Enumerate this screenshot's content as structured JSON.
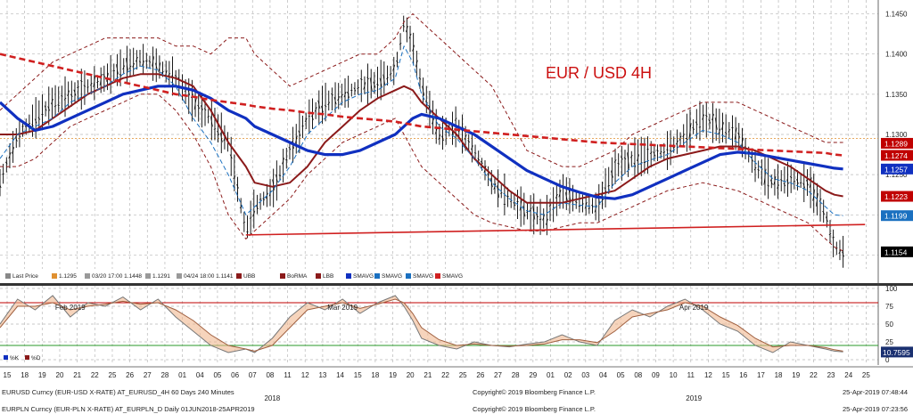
{
  "chart_data": [
    {
      "type": "line",
      "title": "EUR / USD 4H",
      "pair_label": "EUR / USD 4H",
      "ylim": [
        1.1135,
        1.1465
      ],
      "y_ticks": [
        1.115,
        1.12,
        1.125,
        1.13,
        1.135,
        1.14,
        1.145
      ],
      "y_tick_labels": [
        "",
        "",
        "1.1250",
        "1.1300",
        "1.1350",
        "1.1400",
        "1.1450"
      ],
      "grid": true,
      "last_value_tags": [
        {
          "value": 1.1289,
          "label": "1.1289",
          "color": "#c00000"
        },
        {
          "value": 1.1274,
          "label": "1.1274",
          "color": "#c00000"
        },
        {
          "value": 1.1257,
          "label": "1.1257",
          "color": "#1030c0"
        },
        {
          "value": 1.1223,
          "label": "1.1223",
          "color": "#c00000"
        },
        {
          "value": 1.1199,
          "label": "1.1199",
          "color": "#1a70c0"
        },
        {
          "value": 1.1154,
          "label": "1.1154",
          "color": "#000000"
        }
      ],
      "reference_lines": [
        {
          "name": "last-price-ref",
          "value": 1.1295,
          "color": "#e09030"
        }
      ],
      "trendline": {
        "x": [
          0.28,
          0.985
        ],
        "y": [
          1.1175,
          1.1188
        ],
        "color": "#d02020"
      },
      "price_series": {
        "x": [
          0.0,
          0.02,
          0.04,
          0.06,
          0.08,
          0.1,
          0.12,
          0.14,
          0.16,
          0.18,
          0.2,
          0.22,
          0.24,
          0.26,
          0.28,
          0.29,
          0.31,
          0.33,
          0.35,
          0.37,
          0.39,
          0.41,
          0.43,
          0.45,
          0.46,
          0.47,
          0.48,
          0.5,
          0.52,
          0.54,
          0.56,
          0.58,
          0.6,
          0.62,
          0.64,
          0.66,
          0.68,
          0.7,
          0.72,
          0.74,
          0.76,
          0.78,
          0.8,
          0.82,
          0.84,
          0.86,
          0.88,
          0.9,
          0.92,
          0.94,
          0.95,
          0.96
        ],
        "y": [
          1.124,
          1.13,
          1.132,
          1.134,
          1.135,
          1.136,
          1.137,
          1.1385,
          1.1395,
          1.1385,
          1.137,
          1.134,
          1.132,
          1.129,
          1.118,
          1.121,
          1.123,
          1.128,
          1.132,
          1.134,
          1.135,
          1.136,
          1.1365,
          1.138,
          1.144,
          1.141,
          1.136,
          1.13,
          1.131,
          1.128,
          1.124,
          1.122,
          1.1205,
          1.1195,
          1.123,
          1.1215,
          1.121,
          1.126,
          1.127,
          1.1275,
          1.128,
          1.13,
          1.132,
          1.131,
          1.13,
          1.126,
          1.124,
          1.1245,
          1.124,
          1.12,
          1.116,
          1.1154
        ]
      },
      "series": [
        {
          "name": "UBB",
          "color": "#8b1a1a",
          "dash": "4,3",
          "values": [
            1.133,
            1.135,
            1.137,
            1.139,
            1.14,
            1.141,
            1.142,
            1.142,
            1.142,
            1.142,
            1.141,
            1.141,
            1.14,
            1.142,
            1.142,
            1.14,
            1.138,
            1.136,
            1.137,
            1.138,
            1.139,
            1.14,
            1.14,
            1.142,
            1.144,
            1.145,
            1.144,
            1.142,
            1.14,
            1.138,
            1.136,
            1.132,
            1.128,
            1.127,
            1.126,
            1.126,
            1.127,
            1.128,
            1.13,
            1.131,
            1.132,
            1.133,
            1.134,
            1.134,
            1.134,
            1.133,
            1.132,
            1.131,
            1.13,
            1.129,
            1.129,
            1.129
          ]
        },
        {
          "name": "BoRMA",
          "color": "#8b1a1a",
          "dash": "",
          "values": [
            1.13,
            1.13,
            1.1305,
            1.132,
            1.1335,
            1.135,
            1.136,
            1.137,
            1.1375,
            1.1375,
            1.137,
            1.136,
            1.133,
            1.129,
            1.126,
            1.124,
            1.1235,
            1.124,
            1.126,
            1.129,
            1.131,
            1.133,
            1.1345,
            1.1355,
            1.136,
            1.1355,
            1.134,
            1.132,
            1.13,
            1.127,
            1.125,
            1.123,
            1.1215,
            1.1215,
            1.1215,
            1.122,
            1.1225,
            1.123,
            1.1245,
            1.126,
            1.127,
            1.1275,
            1.128,
            1.1285,
            1.1285,
            1.128,
            1.127,
            1.126,
            1.1245,
            1.123,
            1.1225,
            1.1223
          ]
        },
        {
          "name": "LBB",
          "color": "#8b1a1a",
          "dash": "4,3",
          "values": [
            1.126,
            1.126,
            1.127,
            1.129,
            1.131,
            1.132,
            1.133,
            1.134,
            1.135,
            1.135,
            1.133,
            1.13,
            1.126,
            1.12,
            1.117,
            1.118,
            1.12,
            1.122,
            1.125,
            1.127,
            1.129,
            1.13,
            1.131,
            1.132,
            1.13,
            1.128,
            1.126,
            1.124,
            1.122,
            1.12,
            1.119,
            1.1185,
            1.118,
            1.118,
            1.1185,
            1.119,
            1.119,
            1.12,
            1.121,
            1.122,
            1.123,
            1.1235,
            1.124,
            1.1235,
            1.123,
            1.122,
            1.121,
            1.12,
            1.119,
            1.117,
            1.116,
            1.1155
          ]
        },
        {
          "name": "SMAVG",
          "color": "#1030c0",
          "dash": "",
          "values": [
            1.134,
            1.132,
            1.1305,
            1.131,
            1.132,
            1.133,
            1.134,
            1.135,
            1.1355,
            1.136,
            1.136,
            1.1355,
            1.1345,
            1.133,
            1.132,
            1.131,
            1.13,
            1.129,
            1.128,
            1.1275,
            1.1275,
            1.128,
            1.129,
            1.13,
            1.131,
            1.132,
            1.1325,
            1.132,
            1.131,
            1.13,
            1.1285,
            1.127,
            1.1255,
            1.1245,
            1.1235,
            1.1228,
            1.1222,
            1.122,
            1.1225,
            1.1235,
            1.1245,
            1.1255,
            1.1265,
            1.1275,
            1.1278,
            1.1276,
            1.1272,
            1.1268,
            1.1264,
            1.126,
            1.1258,
            1.1257
          ]
        },
        {
          "name": "SMAVG",
          "color": "#1a70c0",
          "dash": "5,3",
          "values": [
            1.127,
            1.13,
            1.131,
            1.132,
            1.134,
            1.135,
            1.136,
            1.1375,
            1.1385,
            1.138,
            1.136,
            1.132,
            1.129,
            1.125,
            1.12,
            1.121,
            1.123,
            1.126,
            1.13,
            1.132,
            1.134,
            1.135,
            1.1355,
            1.137,
            1.141,
            1.139,
            1.135,
            1.131,
            1.1295,
            1.127,
            1.124,
            1.122,
            1.1205,
            1.12,
            1.1215,
            1.1212,
            1.121,
            1.124,
            1.126,
            1.1268,
            1.1275,
            1.129,
            1.1305,
            1.13,
            1.129,
            1.1265,
            1.1245,
            1.124,
            1.123,
            1.121,
            1.12,
            1.1199
          ]
        },
        {
          "name": "SMAVG",
          "color": "#d02020",
          "dash": "7,4",
          "values": [
            1.14,
            1.1395,
            1.139,
            1.1385,
            1.138,
            1.1375,
            1.137,
            1.1365,
            1.136,
            1.1355,
            1.135,
            1.1347,
            1.1343,
            1.134,
            1.1337,
            1.1335,
            1.1332,
            1.133,
            1.1327,
            1.1325,
            1.1322,
            1.132,
            1.1318,
            1.1316,
            1.1314,
            1.1312,
            1.131,
            1.1308,
            1.1306,
            1.1304,
            1.1302,
            1.13,
            1.1298,
            1.1296,
            1.1294,
            1.1292,
            1.129,
            1.1289,
            1.1288,
            1.1287,
            1.1286,
            1.1285,
            1.1284,
            1.1283,
            1.1282,
            1.1281,
            1.128,
            1.1279,
            1.1278,
            1.1277,
            1.1275,
            1.1274
          ]
        }
      ]
    },
    {
      "type": "line",
      "title": "",
      "ylim": [
        0,
        100
      ],
      "y_ticks": [
        0,
        25,
        50,
        75,
        100
      ],
      "y_tick_labels": [
        "0",
        "25",
        "50",
        "75",
        "100"
      ],
      "reference_lines": [
        {
          "name": "overbought",
          "value": 80,
          "color": "#c00000"
        },
        {
          "name": "oversold",
          "value": 20,
          "color": "#2a9a2a"
        }
      ],
      "last_value_tag": {
        "value": 10.7595,
        "label": "10.7595"
      },
      "series": [
        {
          "name": "%K",
          "color": "#1030c0",
          "values": [
            50,
            85,
            70,
            90,
            60,
            80,
            75,
            88,
            70,
            85,
            60,
            40,
            20,
            10,
            15,
            10,
            30,
            60,
            80,
            70,
            85,
            65,
            80,
            90,
            75,
            55,
            30,
            20,
            15,
            25,
            20,
            18,
            22,
            25,
            35,
            25,
            20,
            55,
            70,
            60,
            75,
            85,
            70,
            50,
            40,
            20,
            10,
            25,
            20,
            15,
            12,
            11
          ]
        },
        {
          "name": "%D",
          "color": "#8b1a1a",
          "values": [
            45,
            75,
            75,
            80,
            70,
            75,
            78,
            82,
            78,
            80,
            70,
            55,
            35,
            20,
            15,
            12,
            20,
            45,
            70,
            75,
            80,
            72,
            78,
            85,
            80,
            65,
            45,
            28,
            20,
            22,
            20,
            19,
            20,
            22,
            28,
            28,
            24,
            40,
            60,
            65,
            70,
            80,
            75,
            60,
            48,
            30,
            18,
            20,
            20,
            17,
            14,
            12
          ]
        }
      ],
      "legend": [
        "%K",
        "%D"
      ]
    }
  ],
  "x_axis": {
    "day_labels": [
      "15",
      "18",
      "19",
      "20",
      "21",
      "22",
      "25",
      "26",
      "27",
      "28",
      "01",
      "04",
      "05",
      "06",
      "07",
      "08",
      "11",
      "12",
      "13",
      "14",
      "15",
      "18",
      "19",
      "20",
      "21",
      "22",
      "25",
      "26",
      "27",
      "28",
      "29",
      "01",
      "02",
      "03",
      "04",
      "05",
      "08",
      "09",
      "10",
      "11",
      "12",
      "15",
      "16",
      "17",
      "18",
      "19",
      "22",
      "23",
      "24",
      "25"
    ],
    "month_labels": [
      {
        "text": "Feb 2019",
        "pos": 0.08
      },
      {
        "text": "Mar 2019",
        "pos": 0.39
      },
      {
        "text": "Apr 2019",
        "pos": 0.79
      }
    ],
    "year_labels": [
      {
        "text": "2018",
        "pos": 0.31
      },
      {
        "text": "2019",
        "pos": 0.79
      }
    ]
  },
  "legend_items": [
    {
      "label": "Last Price",
      "color": "#888888"
    },
    {
      "label": "1.1295",
      "color": "#e09030"
    },
    {
      "label": "03/20 17:00 1.1448",
      "color": "#999999"
    },
    {
      "label": "1.1291",
      "color": "#999999"
    },
    {
      "label": "04/24 18:00 1.1141",
      "color": "#999999"
    },
    {
      "label": "UBB",
      "color": "#8b1a1a"
    },
    {
      "label": "BoRMA",
      "color": "#8b1a1a"
    },
    {
      "label": "LBB",
      "color": "#8b1a1a"
    },
    {
      "label": "SMAVG",
      "color": "#1030c0"
    },
    {
      "label": "SMAVG",
      "color": "#1a70c0"
    },
    {
      "label": "SMAVG",
      "color": "#1a70c0"
    },
    {
      "label": "SMAVG",
      "color": "#d02020"
    }
  ],
  "footer": {
    "line1_left": "EURUSD Curncy (EUR-USD X-RATE) AT_EURUSD_4H 60 Days 240 Minutes",
    "line1_center": "Copyright© 2019 Bloomberg Finance L.P.",
    "line1_right": "25-Apr-2019 07:48:44",
    "line2_left": "EURPLN Curncy (EUR-PLN X-RATE) AT_EURPLN_D Daily 01JUN2018-25APR2019",
    "line2_center": "Copyright© 2019 Bloomberg Finance L.P.",
    "line2_right": "25-Apr-2019 07:23:56"
  }
}
